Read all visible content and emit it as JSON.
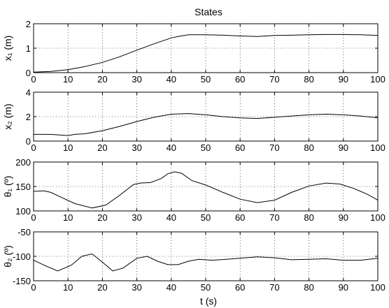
{
  "chart_data": {
    "title": "States",
    "xlabel": "t (s)",
    "x_ticks": [
      0,
      10,
      20,
      30,
      40,
      50,
      60,
      70,
      80,
      90,
      100
    ],
    "xlim": [
      0,
      100
    ],
    "grid": true,
    "subplots": [
      {
        "type": "line",
        "ylabel": "x₁ (m)",
        "ylim": [
          0,
          2
        ],
        "y_ticks": [
          0,
          1,
          2
        ],
        "series": [
          {
            "x": [
              0,
              5,
              10,
              15,
              20,
              25,
              30,
              35,
              40,
              42,
              45,
              50,
              55,
              60,
              65,
              70,
              75,
              80,
              85,
              90,
              95,
              100
            ],
            "y": [
              0.02,
              0.05,
              0.12,
              0.25,
              0.42,
              0.65,
              0.92,
              1.18,
              1.42,
              1.48,
              1.55,
              1.55,
              1.53,
              1.5,
              1.48,
              1.52,
              1.53,
              1.55,
              1.56,
              1.56,
              1.55,
              1.52
            ]
          }
        ]
      },
      {
        "type": "line",
        "ylabel": "x₂ (m)",
        "ylim": [
          0,
          4
        ],
        "y_ticks": [
          0,
          2,
          4
        ],
        "series": [
          {
            "x": [
              0,
              5,
              10,
              12,
              15,
              20,
              25,
              30,
              35,
              40,
              45,
              50,
              55,
              60,
              65,
              70,
              75,
              80,
              85,
              90,
              95,
              100
            ],
            "y": [
              0.55,
              0.55,
              0.45,
              0.55,
              0.6,
              0.85,
              1.2,
              1.6,
              1.95,
              2.2,
              2.25,
              2.15,
              2.0,
              1.9,
              1.85,
              1.95,
              2.05,
              2.15,
              2.2,
              2.15,
              2.05,
              1.9
            ]
          }
        ]
      },
      {
        "type": "line",
        "ylabel": "θ₁ (º)",
        "ylim": [
          100,
          200
        ],
        "y_ticks": [
          100,
          150,
          200
        ],
        "series": [
          {
            "x": [
              0,
              3,
              5,
              8,
              12,
              17,
              21,
              25,
              29,
              31,
              34,
              37,
              39,
              41,
              43,
              46,
              50,
              55,
              60,
              65,
              70,
              75,
              80,
              85,
              89,
              93,
              97,
              100
            ],
            "y": [
              140,
              141,
              138,
              128,
              115,
              106,
              112,
              132,
              154,
              157,
              158,
              166,
              176,
              180,
              177,
              162,
              153,
              138,
              124,
              117,
              122,
              138,
              151,
              157,
              155,
              146,
              134,
              122
            ]
          }
        ]
      },
      {
        "type": "line",
        "ylabel": "θ₂ (º)",
        "ylim": [
          -150,
          -50
        ],
        "y_ticks": [
          -150,
          -100,
          -50
        ],
        "series": [
          {
            "x": [
              0,
              3,
              7,
              11,
              14,
              17,
              20,
              23,
              26,
              30,
              33,
              36,
              39,
              42,
              45,
              48,
              52,
              56,
              60,
              65,
              70,
              75,
              80,
              85,
              90,
              95,
              100
            ],
            "y": [
              -108,
              -118,
              -130,
              -118,
              -100,
              -95,
              -112,
              -130,
              -124,
              -104,
              -100,
              -110,
              -117,
              -117,
              -110,
              -106,
              -108,
              -106,
              -104,
              -101,
              -103,
              -107,
              -106,
              -105,
              -108,
              -108,
              -104
            ]
          }
        ]
      }
    ]
  }
}
